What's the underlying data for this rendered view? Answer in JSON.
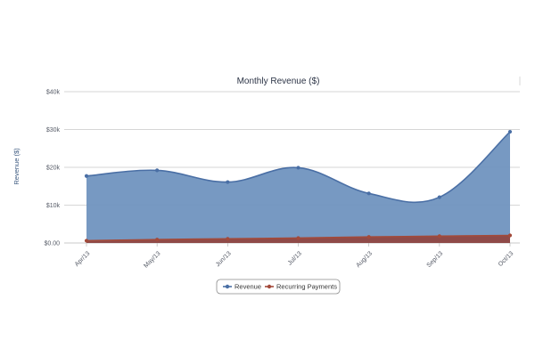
{
  "chart_data": {
    "type": "area",
    "title": "Monthly Revenue ($)",
    "ylabel": "Revenue ($)",
    "xlabel": "",
    "categories": [
      "Apr/13",
      "May/13",
      "Jun/13",
      "Jul/13",
      "Aug/13",
      "Sep/13",
      "Oct/13"
    ],
    "y_ticks": [
      "$0.00",
      "$10k",
      "$20k",
      "$30k",
      "$40k"
    ],
    "y_tick_values": [
      0,
      10000,
      20000,
      30000,
      40000
    ],
    "ylim": [
      0,
      40000
    ],
    "grid": true,
    "legend_position": "bottom",
    "series": [
      {
        "name": "Revenue",
        "values": [
          17700,
          19200,
          16100,
          19900,
          13100,
          12100,
          29400
        ],
        "color": "#4a6fa5",
        "fill": "#7093bf"
      },
      {
        "name": "Recurring Payments",
        "values": [
          600,
          900,
          1100,
          1300,
          1600,
          1800,
          2000
        ],
        "color": "#a34a3a",
        "fill": "#8f4a48"
      }
    ]
  }
}
